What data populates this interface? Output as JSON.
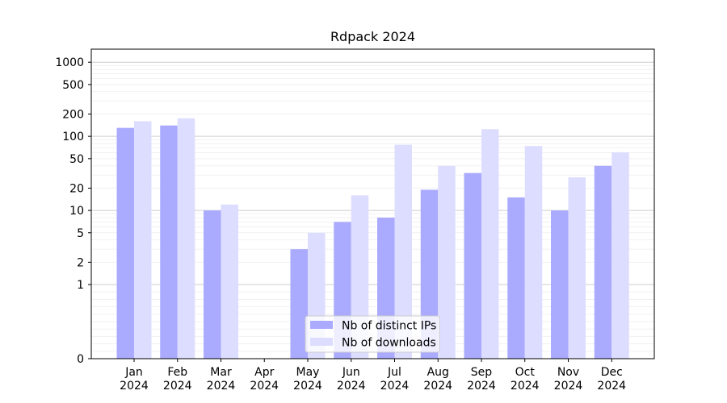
{
  "chart_data": {
    "type": "bar",
    "title": "Rdpack 2024",
    "xlabel": "",
    "ylabel": "",
    "scale": "symlog",
    "categories": [
      {
        "month": "Jan",
        "year": "2024"
      },
      {
        "month": "Feb",
        "year": "2024"
      },
      {
        "month": "Mar",
        "year": "2024"
      },
      {
        "month": "Apr",
        "year": "2024"
      },
      {
        "month": "May",
        "year": "2024"
      },
      {
        "month": "Jun",
        "year": "2024"
      },
      {
        "month": "Jul",
        "year": "2024"
      },
      {
        "month": "Aug",
        "year": "2024"
      },
      {
        "month": "Sep",
        "year": "2024"
      },
      {
        "month": "Oct",
        "year": "2024"
      },
      {
        "month": "Nov",
        "year": "2024"
      },
      {
        "month": "Dec",
        "year": "2024"
      }
    ],
    "series": [
      {
        "name": "Nb of distinct IPs",
        "color": "#aaaaff",
        "values": [
          130,
          140,
          10,
          0,
          3,
          7,
          8,
          19,
          32,
          15,
          10,
          40
        ]
      },
      {
        "name": "Nb of downloads",
        "color": "#ddddff",
        "values": [
          160,
          175,
          12,
          0,
          5,
          16,
          77,
          40,
          125,
          74,
          28,
          61
        ]
      }
    ],
    "yticks": [
      {
        "value": 0,
        "label": "0"
      },
      {
        "value": 1,
        "label": "1"
      },
      {
        "value": 2,
        "label": "2"
      },
      {
        "value": 5,
        "label": "5"
      },
      {
        "value": 10,
        "label": "10"
      },
      {
        "value": 20,
        "label": "20"
      },
      {
        "value": 50,
        "label": "50"
      },
      {
        "value": 100,
        "label": "100"
      },
      {
        "value": 200,
        "label": "200"
      },
      {
        "value": 500,
        "label": "500"
      },
      {
        "value": 1000,
        "label": "1000"
      }
    ],
    "major_grid": [
      1,
      10,
      100,
      1000
    ],
    "ylim": [
      0,
      1500
    ],
    "grid": true,
    "legend_position": "lower-center"
  }
}
